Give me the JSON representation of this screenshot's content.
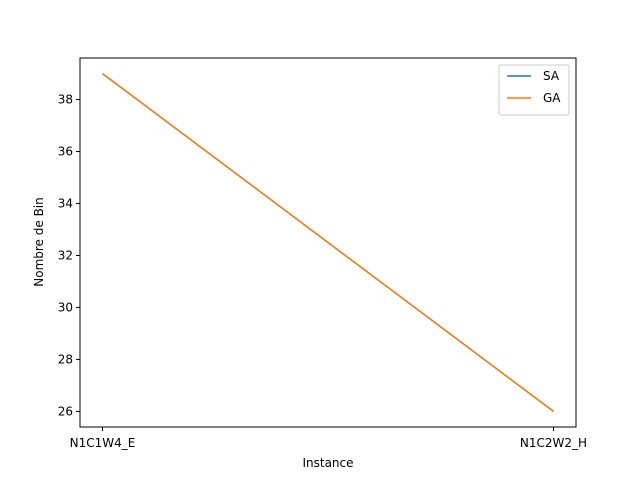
{
  "chart_data": {
    "type": "line",
    "title": "",
    "xlabel": "Instance",
    "ylabel": "Nombre de Bin",
    "categories": [
      "N1C1W4_E",
      "N1C2W2_H"
    ],
    "ylim": [
      25.4,
      39.6
    ],
    "yticks": [
      26,
      28,
      30,
      32,
      34,
      36,
      38
    ],
    "grid": false,
    "legend_position": "top-right",
    "series": [
      {
        "name": "SA",
        "values": [
          39,
          26
        ],
        "color": "#1f77b4"
      },
      {
        "name": "GA",
        "values": [
          39,
          26
        ],
        "color": "#ff7f0e"
      }
    ]
  }
}
